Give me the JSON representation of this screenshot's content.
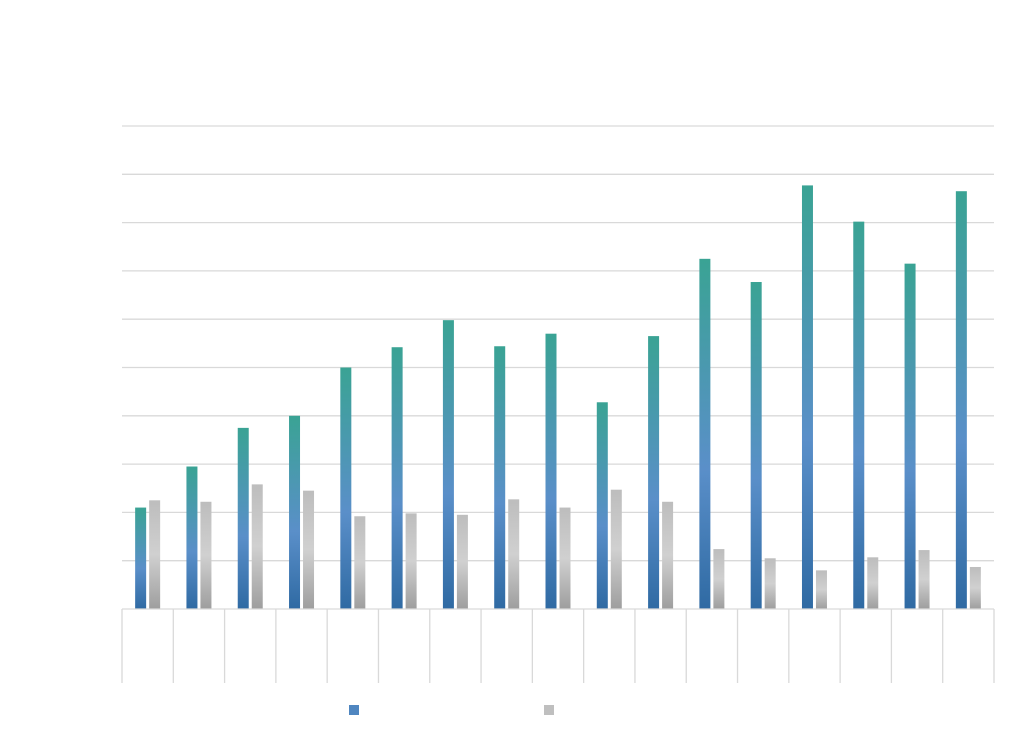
{
  "chart_data": {
    "type": "bar",
    "title": "",
    "xlabel": "",
    "ylabel": "",
    "categories": [
      "",
      "",
      "",
      "",
      "",
      "",
      "",
      "",
      "",
      "",
      "",
      "",
      "",
      "",
      "",
      "",
      ""
    ],
    "ylim": [
      0,
      10
    ],
    "y_ticks": [
      0,
      1,
      2,
      3,
      4,
      5,
      6,
      7,
      8,
      9,
      10
    ],
    "grid": true,
    "legend": "bottom",
    "series": [
      {
        "name": "",
        "color_top": "#3aa394",
        "color_mid": "#5a8fc9",
        "color_bottom": "#2f6aa3",
        "values": [
          2.1,
          2.95,
          3.75,
          4.0,
          5.0,
          5.42,
          5.98,
          5.44,
          5.7,
          4.28,
          5.65,
          7.25,
          6.77,
          8.77,
          8.02,
          7.15,
          8.65
        ]
      },
      {
        "name": "",
        "color_top": "#bdbdbd",
        "color_mid": "#d0d0d0",
        "color_bottom": "#9e9e9e",
        "values": [
          2.25,
          2.22,
          2.58,
          2.45,
          1.92,
          1.98,
          1.95,
          2.27,
          2.1,
          2.47,
          2.22,
          1.24,
          1.05,
          0.8,
          1.07,
          1.22,
          0.87
        ]
      }
    ]
  }
}
